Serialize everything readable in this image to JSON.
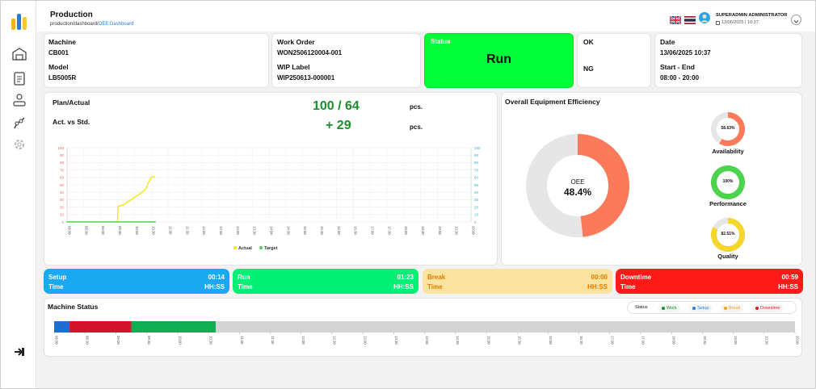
{
  "header": {
    "title": "Production",
    "breadcrumb_path": "production/dashboard/",
    "breadcrumb_current": "OEE Dashboard",
    "user_name": "SUPERADMIN ADMINISTRATOR",
    "user_datetime": "13/06/2025 | 10:37"
  },
  "info": {
    "machine_label": "Machine",
    "machine_value": "CB001",
    "model_label": "Model",
    "model_value": "LB5005R",
    "work_order_label": "Work Order",
    "work_order_value": "WON2506120004-001",
    "wip_label": "WIP Label",
    "wip_value": "WIP250613-000001",
    "status_label": "Status",
    "status_value": "Run",
    "ok_label": "OK",
    "ng_label": "NG",
    "date_label": "Date",
    "date_value": "13/06/2025  10:37",
    "shift_label": "Start - End",
    "shift_value": "08:00 - 20:00"
  },
  "plan": {
    "plan_actual_label": "Plan/Actual",
    "plan_actual_value": "100 / 64",
    "act_vs_std_label": "Act. vs Std.",
    "act_vs_std_value": "+ 29",
    "unit": "pcs."
  },
  "oee": {
    "title": "Overall Equipment Efficiency",
    "center_label": "OEE",
    "value_text": "48.4%",
    "value": 48.4,
    "availability_text": "58.63%",
    "availability_label": "Availability",
    "availability": 58.63,
    "performance_text": "100%",
    "performance_label": "Performance",
    "performance": 100,
    "quality_text": "82.51%",
    "quality_label": "Quality",
    "quality": 82.51
  },
  "summary": {
    "setup_label": "Setup",
    "setup_value": "00:14",
    "run_label": "Run",
    "run_value": "01:23",
    "break_label": "Break",
    "break_value": "00:00",
    "downtime_label": "Downtime",
    "downtime_value": "00:59",
    "time_label": "Time",
    "time_unit": "HH:SS"
  },
  "machine_status": {
    "title": "Machine Status",
    "legend_title": "Status",
    "legend_work": "Work",
    "legend_setup": "Setup",
    "legend_break": "Break",
    "legend_downtime": "Downtime",
    "segments": [
      {
        "state": "setup",
        "from": "08:00",
        "to": "08:15"
      },
      {
        "state": "downtime",
        "from": "08:15",
        "to": "09:15"
      },
      {
        "state": "work",
        "from": "09:15",
        "to": "10:37"
      }
    ],
    "ticks": [
      "08:00",
      "08:30",
      "09:00",
      "09:30",
      "10:00",
      "10:30",
      "11:00",
      "11:30",
      "12:00",
      "12:30",
      "13:00",
      "13:30",
      "14:00",
      "14:30",
      "15:00",
      "15:30",
      "16:00",
      "16:30",
      "17:00",
      "17:30",
      "18:00",
      "18:30",
      "19:00",
      "19:30",
      "20:00"
    ]
  },
  "colors": {
    "run_green": "#00ff38",
    "setup_blue": "#1aa8f0",
    "run_card": "#00f076",
    "break_card": "#fde3a0",
    "downtime_red": "#ff1a1a",
    "oee_orange": "#fb7a5a",
    "perf_green": "#4cd34c",
    "quality_yellow": "#f5d62a",
    "plan_green": "#1a8f2a"
  },
  "chart_data": {
    "type": "line",
    "x": [
      "08:00",
      "08:30",
      "09:00",
      "09:30",
      "10:00",
      "10:30",
      "11:00",
      "11:30",
      "12:00",
      "12:30",
      "13:00",
      "13:30",
      "14:00",
      "14:30",
      "15:00",
      "15:30",
      "16:00",
      "16:30",
      "17:00",
      "17:30",
      "18:00",
      "18:30",
      "19:00",
      "19:30",
      "20:00"
    ],
    "y_ticks": [
      0,
      10,
      20,
      30,
      40,
      50,
      60,
      70,
      80,
      90,
      100
    ],
    "ylim": [
      0,
      100
    ],
    "series": [
      {
        "name": "Actual",
        "color": "#f5e61a",
        "points": [
          [
            "09:30",
            0
          ],
          [
            "09:31",
            21
          ],
          [
            "09:40",
            23
          ],
          [
            "09:50",
            28
          ],
          [
            "10:00",
            33
          ],
          [
            "10:10",
            38
          ],
          [
            "10:20",
            44
          ],
          [
            "10:25",
            53
          ],
          [
            "10:30",
            60
          ],
          [
            "10:35",
            61
          ]
        ]
      },
      {
        "name": "Target",
        "color": "#4cd34c",
        "points": [
          [
            "08:00",
            0
          ],
          [
            "10:37",
            0
          ]
        ]
      }
    ]
  }
}
